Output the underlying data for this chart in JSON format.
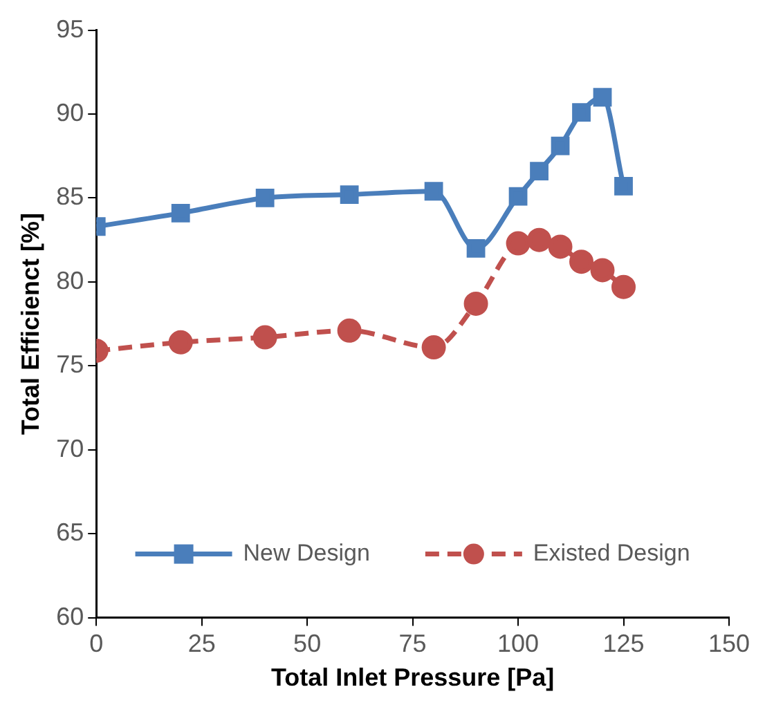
{
  "chart_data": {
    "type": "line",
    "xlabel": "Total Inlet Pressure [Pa]",
    "ylabel": "Total Efficienct [%]",
    "xlim": [
      0,
      150
    ],
    "xticks": [
      0,
      25,
      50,
      75,
      100,
      125,
      150
    ],
    "ylim": [
      60,
      95
    ],
    "yticks": [
      60,
      65,
      70,
      75,
      80,
      85,
      90,
      95
    ],
    "grid": false,
    "legend": "bottom",
    "series": [
      {
        "name": "New Design",
        "color": "#4a7ebb",
        "marker": "square",
        "line_style": "solid",
        "x": [
          0,
          20,
          40,
          60,
          80,
          90,
          100,
          105,
          110,
          115,
          120,
          125
        ],
        "values": [
          83.3,
          84.1,
          85.0,
          85.2,
          85.4,
          82.0,
          85.1,
          86.6,
          88.1,
          90.1,
          91.0,
          85.7
        ]
      },
      {
        "name": "Existed Design",
        "color": "#c0504d",
        "marker": "circle",
        "line_style": "dashed",
        "x": [
          0,
          20,
          40,
          60,
          80,
          90,
          100,
          105,
          110,
          115,
          120,
          125
        ],
        "values": [
          75.9,
          76.4,
          76.7,
          77.1,
          76.1,
          78.7,
          82.3,
          82.5,
          82.1,
          81.2,
          80.7,
          79.7
        ]
      }
    ]
  }
}
